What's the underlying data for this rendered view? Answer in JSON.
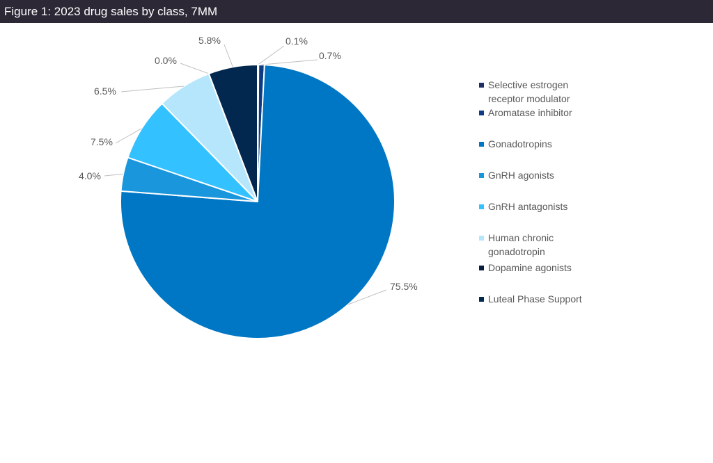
{
  "header": {
    "title": "Figure 1: 2023 drug sales by class, 7MM"
  },
  "chart_data": {
    "type": "pie",
    "title": "Figure 1: 2023 drug sales by class, 7MM",
    "legend_position": "right",
    "slices": [
      {
        "name": "Selective estrogen receptor modulator",
        "value": 0.1,
        "label": "0.1%",
        "color": "#1f2f66"
      },
      {
        "name": "Aromatase inhibitor",
        "value": 0.7,
        "label": "0.7%",
        "color": "#0d3c85"
      },
      {
        "name": "Gonadotropins",
        "value": 75.5,
        "label": "75.5%",
        "color": "#0077c4"
      },
      {
        "name": "GnRH agonists",
        "value": 4.0,
        "label": "4.0%",
        "color": "#1a96dc"
      },
      {
        "name": "GnRH antagonists",
        "value": 7.5,
        "label": "7.5%",
        "color": "#33c1ff"
      },
      {
        "name": "Human chronic gonadotropin",
        "value": 6.5,
        "label": "6.5%",
        "color": "#b5e6fc"
      },
      {
        "name": "Dopamine agonists",
        "value": 0.0,
        "label": "0.0%",
        "color": "#0b1d3f"
      },
      {
        "name": "Luteal Phase Support",
        "value": 5.8,
        "label": "5.8%",
        "color": "#03284f"
      }
    ]
  }
}
